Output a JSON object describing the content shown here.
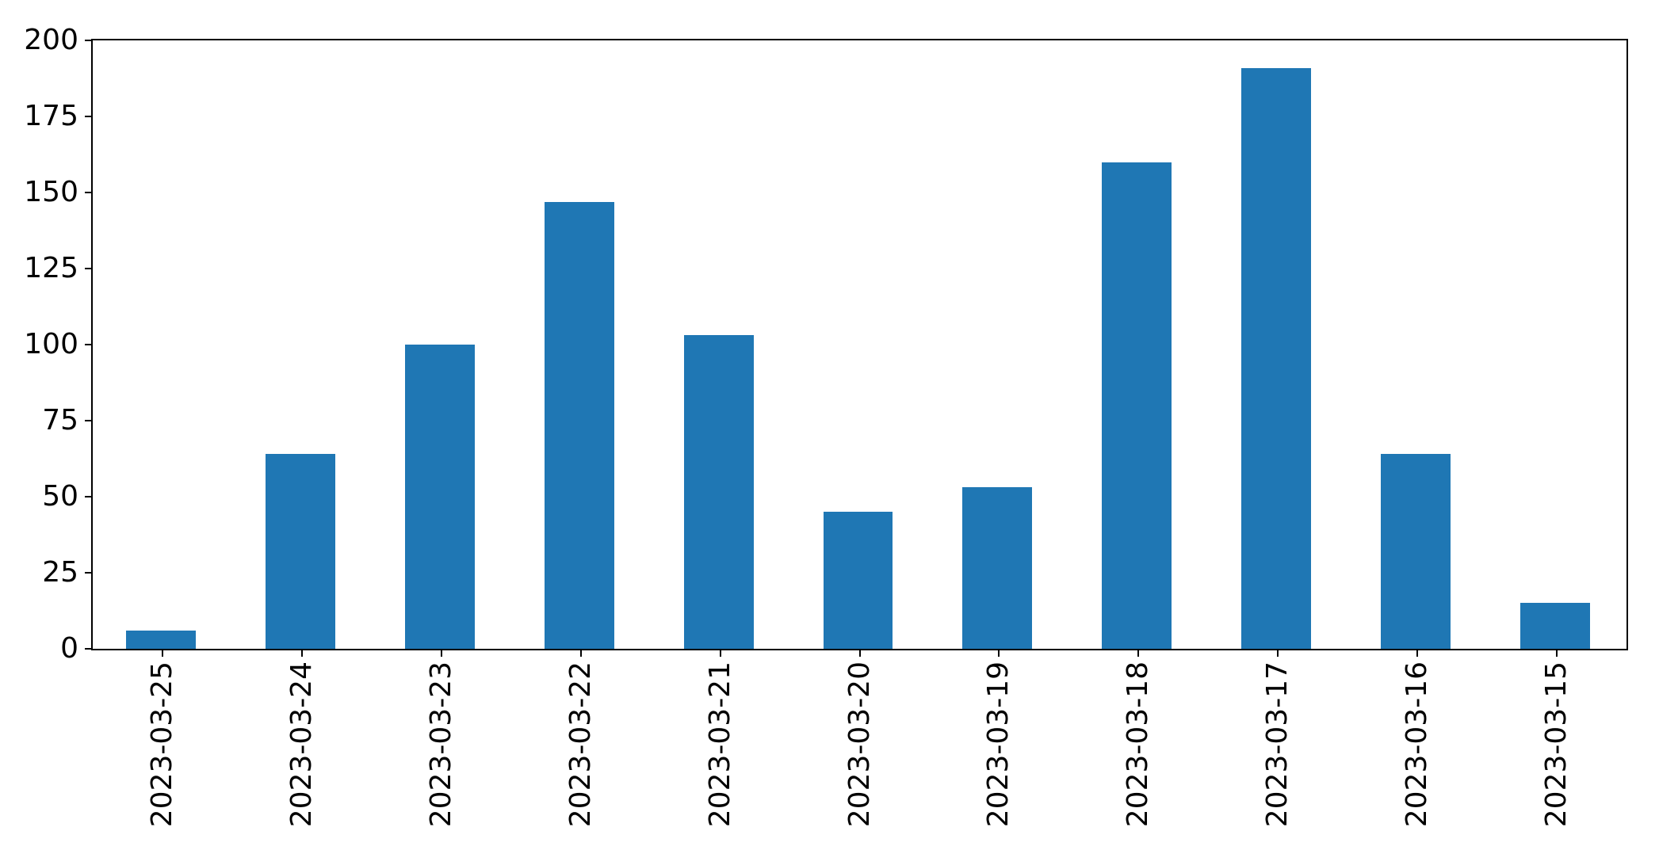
{
  "chart_data": {
    "type": "bar",
    "title": "",
    "xlabel": "",
    "ylabel": "",
    "categories": [
      "2023-03-25",
      "2023-03-24",
      "2023-03-23",
      "2023-03-22",
      "2023-03-21",
      "2023-03-20",
      "2023-03-19",
      "2023-03-18",
      "2023-03-17",
      "2023-03-16",
      "2023-03-15"
    ],
    "values": [
      6,
      64,
      100,
      147,
      103,
      45,
      53,
      160,
      191,
      64,
      15
    ],
    "ylim": [
      0,
      200
    ],
    "yticks": [
      0,
      25,
      50,
      75,
      100,
      125,
      150,
      175,
      200
    ],
    "x_tick_rotation": 90,
    "grid": false,
    "legend": false,
    "colors": {
      "bar": "#1f77b4",
      "spine": "#000000",
      "tick_label": "#000000",
      "background": "#ffffff"
    }
  }
}
